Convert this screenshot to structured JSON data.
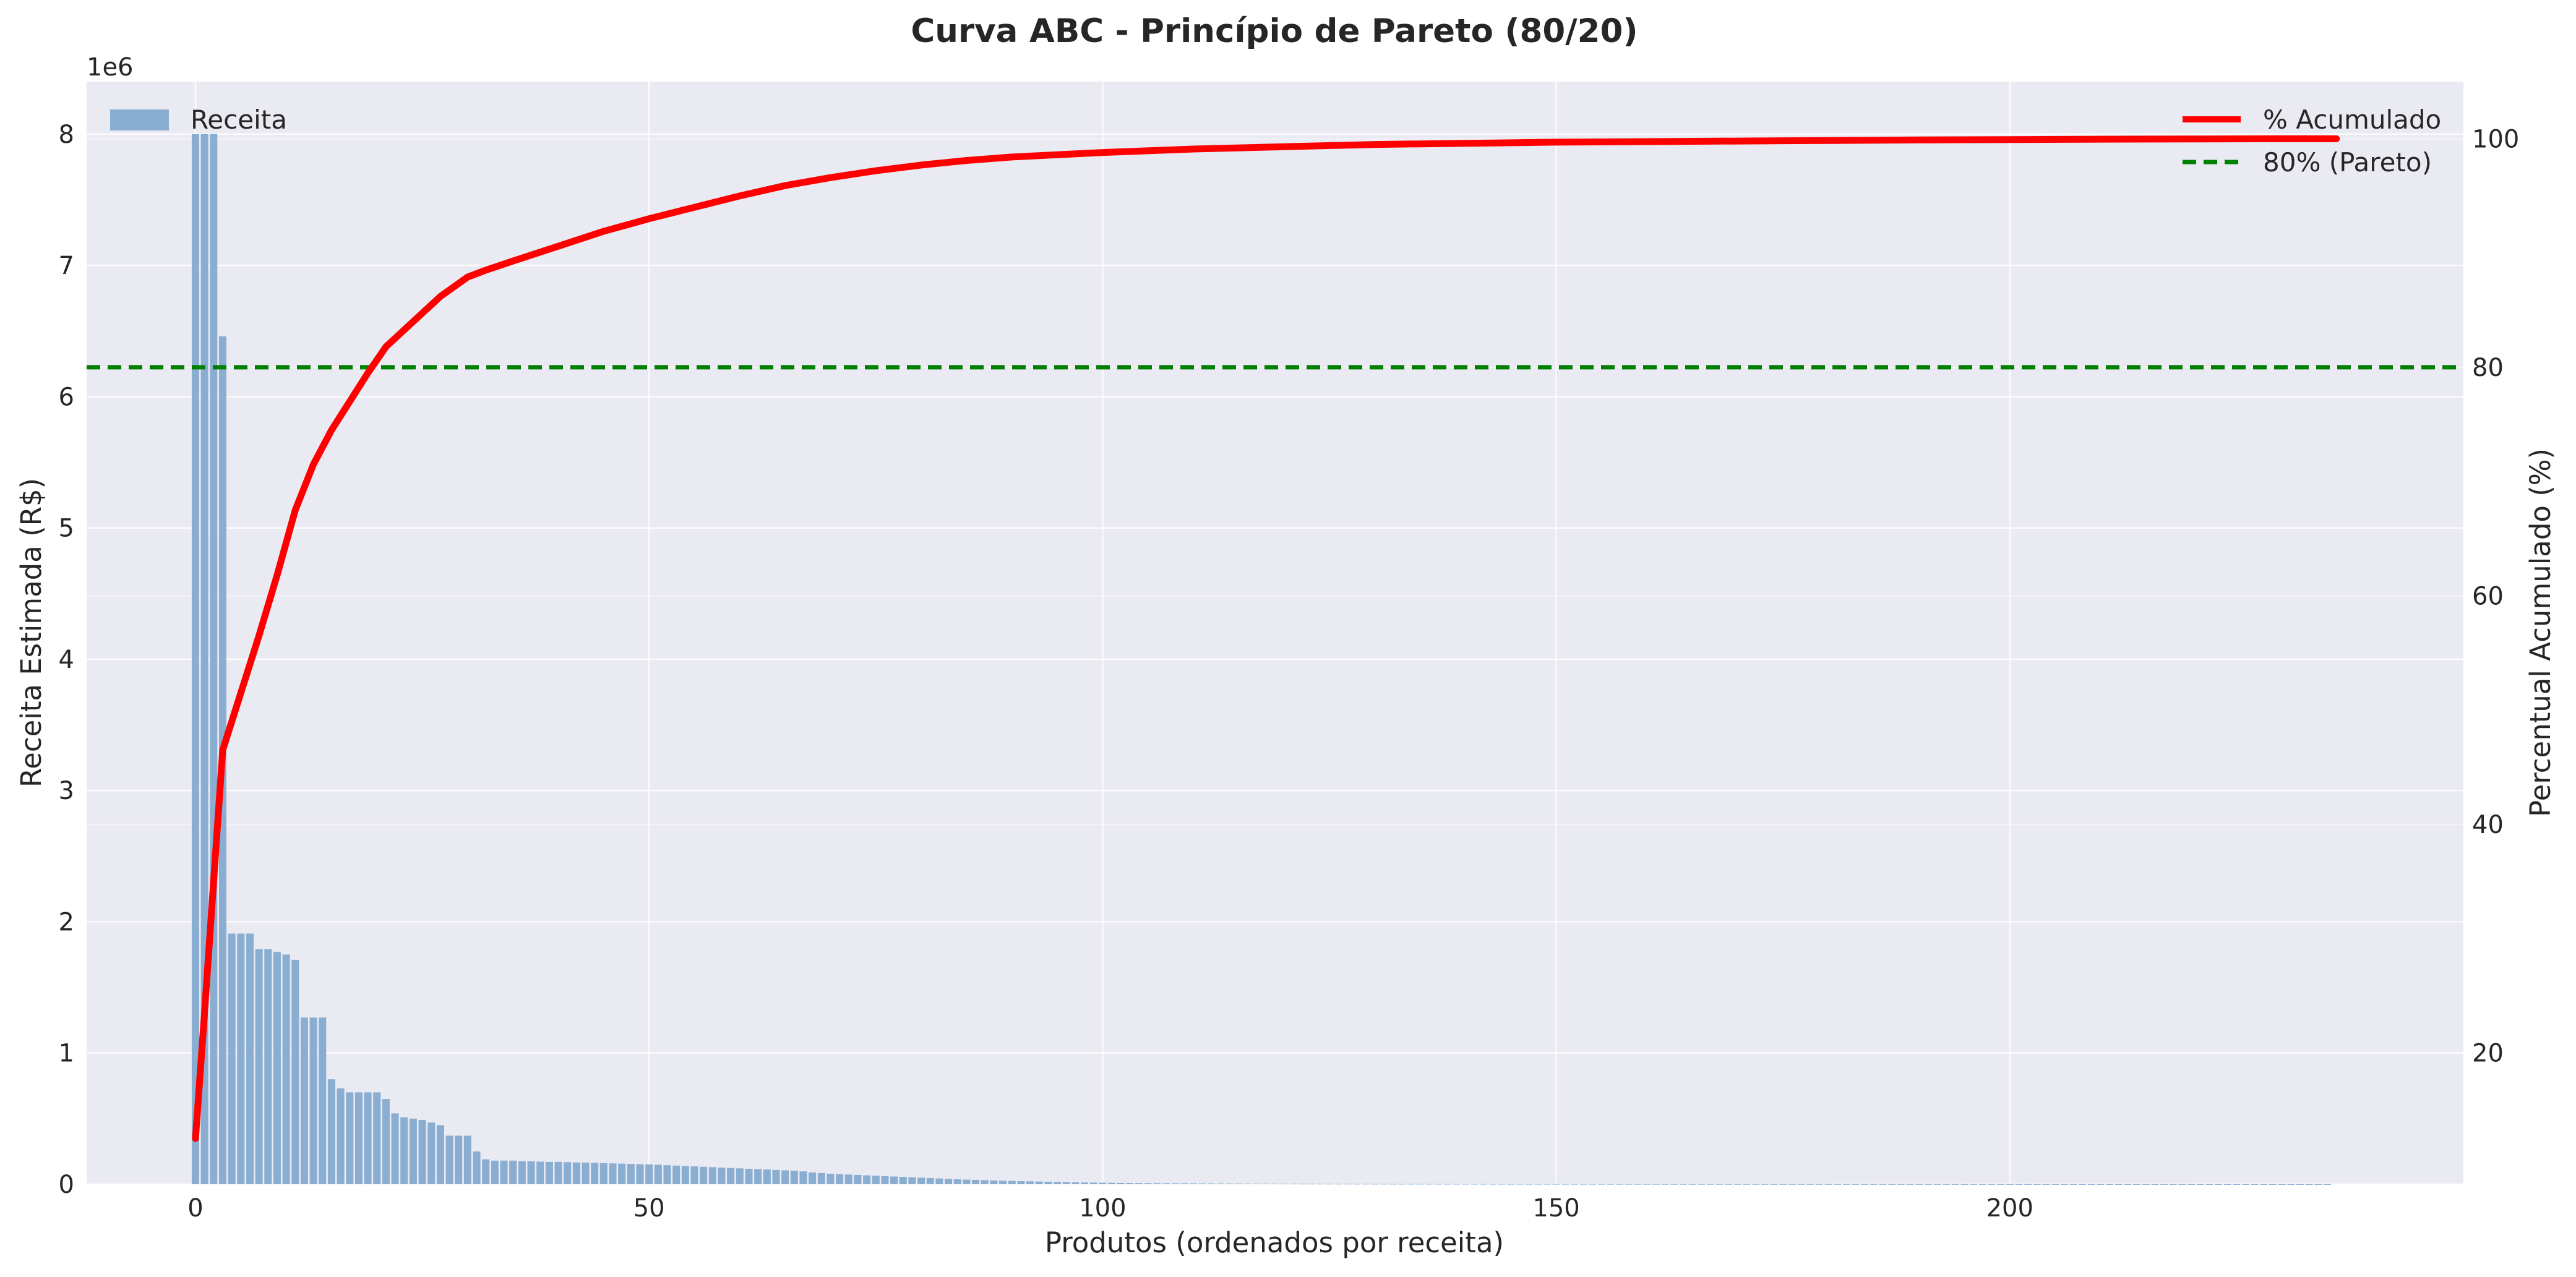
{
  "chart_data": {
    "type": "bar",
    "title": "Curva ABC - Princípio de Pareto (80/20)",
    "xlabel": "Produtos (ordenados por receita)",
    "ylabel_left": "Receita Estimada (R$)",
    "ylabel_right": "Percentual Acumulado (%)",
    "y_left_offset_label": "1e6",
    "xlim": [
      -12,
      250
    ],
    "ylim_left": [
      0,
      8400000
    ],
    "ylim_right": [
      8.5,
      105
    ],
    "x_ticks": [
      0,
      50,
      100,
      150,
      200
    ],
    "y_left_ticks": [
      0,
      1,
      2,
      3,
      4,
      5,
      6,
      7,
      8
    ],
    "y_right_ticks": [
      20,
      40,
      60,
      80,
      100
    ],
    "grid": true,
    "legend_left": {
      "position": "upper left",
      "entries": [
        "Receita"
      ]
    },
    "legend_right": {
      "position": "upper right",
      "entries": [
        "% Acumulado",
        "80% (Pareto)"
      ]
    },
    "colors": {
      "bars": "#8aaed1",
      "cumulative_line": "#ff0000",
      "pareto_line": "#008000",
      "plot_background": "#eaeaf2",
      "grid": "#ffffff"
    },
    "pareto_threshold": 80,
    "bar_series": {
      "name": "Receita",
      "x_start": 0,
      "values": [
        8000000,
        8000000,
        8000000,
        6460000,
        1910000,
        1910000,
        1910000,
        1790000,
        1790000,
        1770000,
        1750000,
        1710000,
        1270000,
        1270000,
        1270000,
        800000,
        730000,
        700000,
        700000,
        700000,
        700000,
        650000,
        540000,
        510000,
        500000,
        490000,
        470000,
        450000,
        370000,
        370000,
        370000,
        250000,
        190000,
        180000,
        180000,
        180000,
        175000,
        175000,
        172000,
        170000,
        170000,
        168000,
        166000,
        165000,
        163000,
        161000,
        159000,
        157000,
        155000,
        153000,
        151000,
        148000,
        145000,
        142000,
        139000,
        136000,
        133000,
        130000,
        127000,
        124000,
        121000,
        118000,
        115000,
        112000,
        109000,
        106000,
        103000,
        98000,
        90000,
        85000,
        80000,
        77000,
        74000,
        71000,
        68000,
        65000,
        62000,
        59000,
        56000,
        53000,
        50000,
        47000,
        44000,
        41000,
        38000,
        35000,
        33000,
        31000,
        29000,
        27000,
        25000,
        23500,
        22000,
        20500,
        19000,
        17500,
        16000,
        14500,
        13500,
        12500,
        11500,
        10500,
        9800,
        9100,
        8500,
        8000,
        7600,
        7200,
        6900,
        6600,
        6300,
        6000,
        5800,
        5600,
        5400,
        5200,
        5000,
        4800,
        4600,
        4400,
        4200,
        4000,
        3900,
        3800,
        3700,
        3600,
        3500,
        3400,
        3300,
        3200,
        3100,
        3000,
        2950,
        2900,
        2850,
        2800,
        2750,
        2700,
        2650,
        2600,
        2550,
        2500,
        2450,
        2400,
        2350,
        2300,
        2250,
        2200,
        2150,
        2100,
        2050,
        2000,
        1950,
        1900,
        1850,
        1800,
        1760,
        1720,
        1680,
        1640,
        1600,
        1560,
        1520,
        1480,
        1440,
        1400,
        1360,
        1320,
        1280,
        1240,
        1200,
        1160,
        1120,
        1080,
        1040,
        1000,
        970,
        940,
        910,
        880,
        850,
        820,
        790,
        760,
        730,
        700,
        680,
        660,
        640,
        620,
        600,
        580,
        560,
        540,
        520,
        500,
        485,
        470,
        455,
        440,
        425,
        410,
        395,
        380,
        365,
        350,
        338,
        326,
        314,
        302,
        290,
        278,
        266,
        254,
        242,
        230,
        220,
        210,
        200,
        190,
        180,
        170,
        160,
        150,
        140,
        130,
        120,
        110,
        100,
        90,
        80,
        70,
        60,
        50,
        40,
        30
      ]
    },
    "line_series": {
      "name": "% Acumulado",
      "x": [
        0,
        1,
        2,
        3,
        5,
        7,
        9,
        11,
        13,
        15,
        17,
        19,
        21,
        24,
        27,
        30,
        32,
        35,
        40,
        45,
        50,
        55,
        60,
        65,
        70,
        75,
        80,
        85,
        90,
        95,
        100,
        110,
        120,
        130,
        140,
        150,
        160,
        170,
        180,
        190,
        200,
        210,
        220,
        230,
        236
      ],
      "y": [
        12.5,
        23.5,
        35.0,
        46.5,
        51.5,
        56.5,
        61.8,
        67.5,
        71.5,
        74.5,
        77.0,
        79.5,
        81.8,
        84.0,
        86.2,
        87.9,
        88.5,
        89.3,
        90.6,
        91.9,
        93.0,
        94.0,
        95.0,
        95.9,
        96.6,
        97.2,
        97.7,
        98.1,
        98.4,
        98.6,
        98.8,
        99.1,
        99.3,
        99.5,
        99.6,
        99.7,
        99.75,
        99.8,
        99.85,
        99.9,
        99.93,
        99.96,
        99.98,
        100.0,
        100.0
      ]
    }
  }
}
